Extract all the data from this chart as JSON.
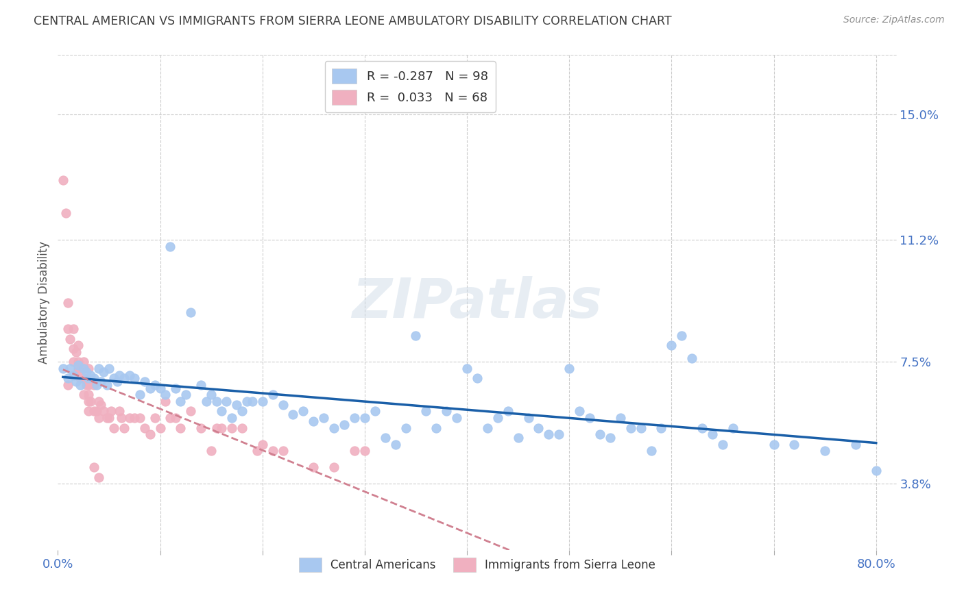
{
  "title": "CENTRAL AMERICAN VS IMMIGRANTS FROM SIERRA LEONE AMBULATORY DISABILITY CORRELATION CHART",
  "source": "Source: ZipAtlas.com",
  "ylabel": "Ambulatory Disability",
  "ytick_vals": [
    0.15,
    0.112,
    0.075,
    0.038
  ],
  "ytick_labels": [
    "15.0%",
    "11.2%",
    "7.5%",
    "3.8%"
  ],
  "xlim": [
    0.0,
    0.82
  ],
  "ylim": [
    0.018,
    0.168
  ],
  "blue_color": "#a8c8f0",
  "pink_color": "#f0b0c0",
  "line_blue_color": "#1a5fa8",
  "line_pink_color": "#d08090",
  "title_color": "#404040",
  "source_color": "#909090",
  "watermark": "ZIPatlas",
  "legend_entry1": "R = -0.287   N = 98",
  "legend_entry2": "R =  0.033   N = 68",
  "bottom_legend1": "Central Americans",
  "bottom_legend2": "Immigrants from Sierra Leone",
  "blue_scatter_x": [
    0.005,
    0.01,
    0.012,
    0.015,
    0.018,
    0.02,
    0.022,
    0.025,
    0.028,
    0.03,
    0.032,
    0.035,
    0.038,
    0.04,
    0.042,
    0.045,
    0.048,
    0.05,
    0.055,
    0.058,
    0.06,
    0.065,
    0.07,
    0.075,
    0.08,
    0.085,
    0.09,
    0.095,
    0.1,
    0.105,
    0.11,
    0.115,
    0.12,
    0.125,
    0.13,
    0.14,
    0.145,
    0.15,
    0.155,
    0.16,
    0.165,
    0.17,
    0.175,
    0.18,
    0.185,
    0.19,
    0.2,
    0.21,
    0.22,
    0.23,
    0.24,
    0.25,
    0.26,
    0.27,
    0.28,
    0.29,
    0.3,
    0.31,
    0.32,
    0.33,
    0.34,
    0.35,
    0.36,
    0.37,
    0.38,
    0.39,
    0.4,
    0.41,
    0.42,
    0.43,
    0.44,
    0.45,
    0.46,
    0.47,
    0.48,
    0.49,
    0.5,
    0.51,
    0.52,
    0.53,
    0.54,
    0.55,
    0.56,
    0.57,
    0.58,
    0.59,
    0.6,
    0.61,
    0.62,
    0.63,
    0.64,
    0.65,
    0.66,
    0.7,
    0.72,
    0.75,
    0.78,
    0.8
  ],
  "blue_scatter_y": [
    0.073,
    0.07,
    0.073,
    0.071,
    0.069,
    0.074,
    0.068,
    0.073,
    0.072,
    0.07,
    0.071,
    0.07,
    0.068,
    0.073,
    0.069,
    0.072,
    0.068,
    0.073,
    0.07,
    0.069,
    0.071,
    0.07,
    0.071,
    0.07,
    0.065,
    0.069,
    0.067,
    0.068,
    0.067,
    0.065,
    0.11,
    0.067,
    0.063,
    0.065,
    0.09,
    0.068,
    0.063,
    0.065,
    0.063,
    0.06,
    0.063,
    0.058,
    0.062,
    0.06,
    0.063,
    0.063,
    0.063,
    0.065,
    0.062,
    0.059,
    0.06,
    0.057,
    0.058,
    0.055,
    0.056,
    0.058,
    0.058,
    0.06,
    0.052,
    0.05,
    0.055,
    0.083,
    0.06,
    0.055,
    0.06,
    0.058,
    0.073,
    0.07,
    0.055,
    0.058,
    0.06,
    0.052,
    0.058,
    0.055,
    0.053,
    0.053,
    0.073,
    0.06,
    0.058,
    0.053,
    0.052,
    0.058,
    0.055,
    0.055,
    0.048,
    0.055,
    0.08,
    0.083,
    0.076,
    0.055,
    0.053,
    0.05,
    0.055,
    0.05,
    0.05,
    0.048,
    0.05,
    0.042
  ],
  "pink_scatter_x": [
    0.005,
    0.008,
    0.01,
    0.01,
    0.012,
    0.015,
    0.015,
    0.018,
    0.02,
    0.02,
    0.02,
    0.022,
    0.025,
    0.025,
    0.025,
    0.028,
    0.03,
    0.03,
    0.03,
    0.03,
    0.032,
    0.035,
    0.035,
    0.038,
    0.04,
    0.04,
    0.042,
    0.045,
    0.048,
    0.05,
    0.052,
    0.055,
    0.06,
    0.062,
    0.065,
    0.07,
    0.075,
    0.08,
    0.085,
    0.09,
    0.095,
    0.1,
    0.105,
    0.11,
    0.115,
    0.12,
    0.13,
    0.14,
    0.15,
    0.155,
    0.16,
    0.17,
    0.18,
    0.195,
    0.2,
    0.21,
    0.22,
    0.25,
    0.27,
    0.29,
    0.3,
    0.01,
    0.015,
    0.02,
    0.025,
    0.03,
    0.035,
    0.04
  ],
  "pink_scatter_y": [
    0.13,
    0.12,
    0.093,
    0.085,
    0.082,
    0.085,
    0.079,
    0.078,
    0.08,
    0.075,
    0.072,
    0.07,
    0.075,
    0.07,
    0.065,
    0.068,
    0.073,
    0.068,
    0.065,
    0.06,
    0.063,
    0.068,
    0.06,
    0.06,
    0.063,
    0.058,
    0.062,
    0.06,
    0.058,
    0.058,
    0.06,
    0.055,
    0.06,
    0.058,
    0.055,
    0.058,
    0.058,
    0.058,
    0.055,
    0.053,
    0.058,
    0.055,
    0.063,
    0.058,
    0.058,
    0.055,
    0.06,
    0.055,
    0.048,
    0.055,
    0.055,
    0.055,
    0.055,
    0.048,
    0.05,
    0.048,
    0.048,
    0.043,
    0.043,
    0.048,
    0.048,
    0.068,
    0.075,
    0.073,
    0.073,
    0.063,
    0.043,
    0.04
  ]
}
